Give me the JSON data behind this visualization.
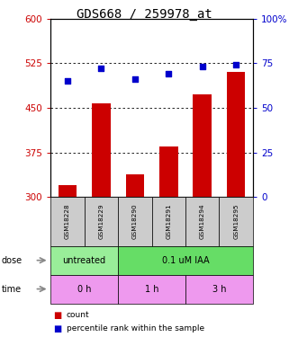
{
  "title": "GDS668 / 259978_at",
  "samples": [
    "GSM18228",
    "GSM18229",
    "GSM18290",
    "GSM18291",
    "GSM18294",
    "GSM18295"
  ],
  "bar_values": [
    320,
    458,
    338,
    385,
    473,
    510
  ],
  "scatter_values": [
    65,
    72,
    66,
    69,
    73,
    74
  ],
  "bar_color": "#cc0000",
  "scatter_color": "#0000cc",
  "ymin": 300,
  "ymax": 600,
  "yticks": [
    300,
    375,
    450,
    525,
    600
  ],
  "y2min": 0,
  "y2max": 100,
  "y2ticks": [
    0,
    25,
    50,
    75,
    100
  ],
  "grid_values": [
    375,
    450,
    525
  ],
  "dose_labels": [
    {
      "text": "untreated",
      "start": 0,
      "end": 2,
      "color": "#99ee99"
    },
    {
      "text": "0.1 uM IAA",
      "start": 2,
      "end": 6,
      "color": "#66dd66"
    }
  ],
  "time_labels": [
    {
      "text": "0 h",
      "start": 0,
      "end": 2,
      "color": "#ee99ee"
    },
    {
      "text": "1 h",
      "start": 2,
      "end": 4,
      "color": "#ee99ee"
    },
    {
      "text": "3 h",
      "start": 4,
      "end": 6,
      "color": "#ee99ee"
    }
  ],
  "dose_arrow_label": "dose",
  "time_arrow_label": "time",
  "legend_count": "count",
  "legend_percentile": "percentile rank within the sample",
  "title_fontsize": 10,
  "axis_label_color_left": "#cc0000",
  "axis_label_color_right": "#0000cc",
  "sample_box_color": "#cccccc"
}
